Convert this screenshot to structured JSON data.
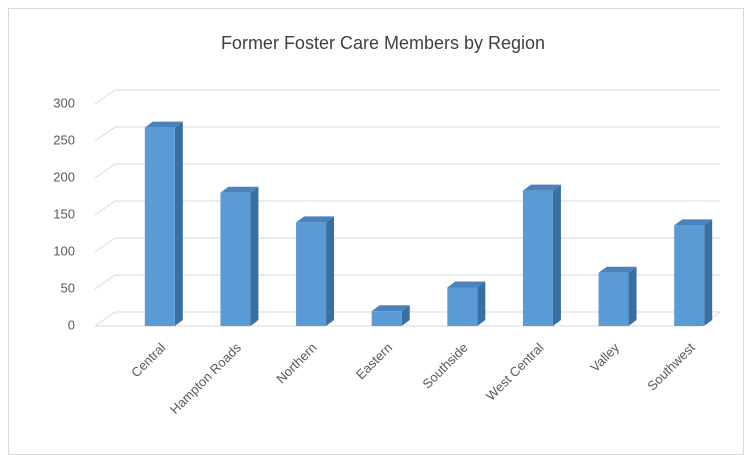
{
  "chart_data": {
    "type": "bar3d",
    "title": "Former Foster Care Members by Region",
    "categories": [
      "Central",
      "Hampton Roads",
      "Northern",
      "Eastern",
      "Southside",
      "West Central",
      "Valley",
      "Southwest"
    ],
    "values": [
      268,
      180,
      140,
      20,
      52,
      183,
      72,
      136
    ],
    "color": "#5b9bd5",
    "ylim": [
      0,
      300
    ],
    "yticks": [
      0,
      50,
      100,
      150,
      200,
      250,
      300
    ],
    "grid": true
  }
}
